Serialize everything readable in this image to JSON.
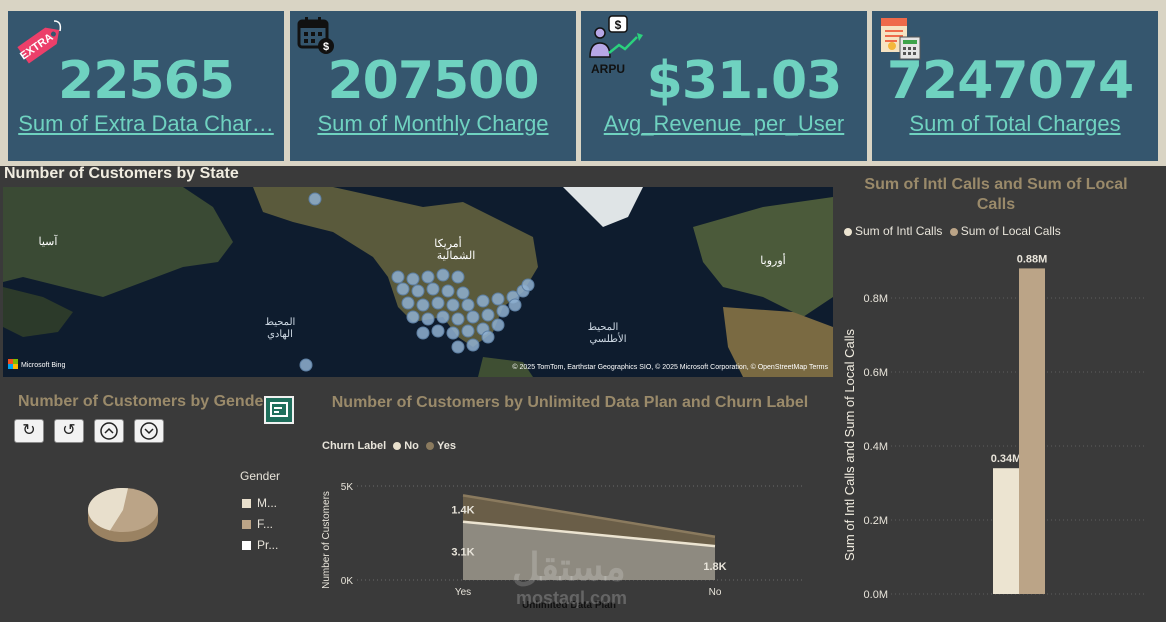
{
  "kpis": [
    {
      "value": "22565",
      "label": "Sum of Extra Data Char…",
      "icon": "extra-tag-icon",
      "icon_text": "EXTRA"
    },
    {
      "value": "207500",
      "label": "Sum of Monthly Charge",
      "icon": "calendar-dollar-icon"
    },
    {
      "value": "$31.03",
      "label": "Avg_Revenue_per_User",
      "icon": "arpu-icon",
      "icon_text": "ARPU"
    },
    {
      "value": "7247074",
      "label": "Sum of Total Charges",
      "icon": "invoice-calculator-icon"
    }
  ],
  "map": {
    "title": "Number of Customers by State",
    "labels": {
      "asia": "آسيا",
      "north_america_1": "أمريكا",
      "north_america_2": "الشمالية",
      "pacific_1": "المحيط",
      "pacific_2": "الهادي",
      "atlantic_1": "المحيط",
      "atlantic_2": "الأطلسي",
      "europe": "أوروبا"
    },
    "attribution": "© 2025 TomTom, Earthstar Geographics SIO, © 2025 Microsoft Corporation, © OpenStreetMap Terms",
    "bing_label": "Microsoft Bing"
  },
  "gender": {
    "title": "Number of Customers by Gender",
    "legend_title": "Gender",
    "legend": [
      {
        "label": "M...",
        "color": "#e8dfcc"
      },
      {
        "label": "F...",
        "color": "#bba487"
      },
      {
        "label": "Pr...",
        "color": "#ffffff"
      }
    ],
    "controls": [
      "drill-up-icon",
      "undo-icon",
      "expand-up-icon",
      "expand-down-icon"
    ]
  },
  "churn_chart": {
    "title": "Number of Customers by Unlimited Data Plan and Churn Label",
    "legend_title": "Churn Label",
    "yticks": [
      "5K",
      "0K"
    ],
    "chart_data": {
      "type": "area",
      "categories": [
        "Yes",
        "No"
      ],
      "xlabel": "Unlimited Data Plan",
      "ylabel": "Number of Customers",
      "ylim": [
        0,
        5000
      ],
      "series": [
        {
          "name": "No",
          "values": [
            3100,
            1800
          ],
          "color": "#e8dfcc",
          "labels": [
            "3.1K",
            "1.8K"
          ]
        },
        {
          "name": "Yes",
          "values": [
            1400,
            500
          ],
          "color": "#8a7a5e",
          "labels": [
            "1.4K",
            ""
          ]
        }
      ]
    }
  },
  "calls_chart": {
    "title": "Sum of Intl Calls and Sum of Local Calls",
    "yticks": [
      "0.0M",
      "0.2M",
      "0.4M",
      "0.6M",
      "0.8M"
    ],
    "chart_data": {
      "type": "bar",
      "ylabel": "Sum of Intl Calls and Sum of Local Calls",
      "ylim": [
        0,
        0.88
      ],
      "series": [
        {
          "name": "Sum of Intl Calls",
          "values": [
            0.34
          ],
          "label": "0.34M",
          "color": "#ece4d1"
        },
        {
          "name": "Sum of Local Calls",
          "values": [
            0.88
          ],
          "label": "0.88M",
          "color": "#bba487"
        }
      ]
    }
  },
  "watermark": {
    "ar": "مستقل",
    "en": "mostaql.com"
  }
}
